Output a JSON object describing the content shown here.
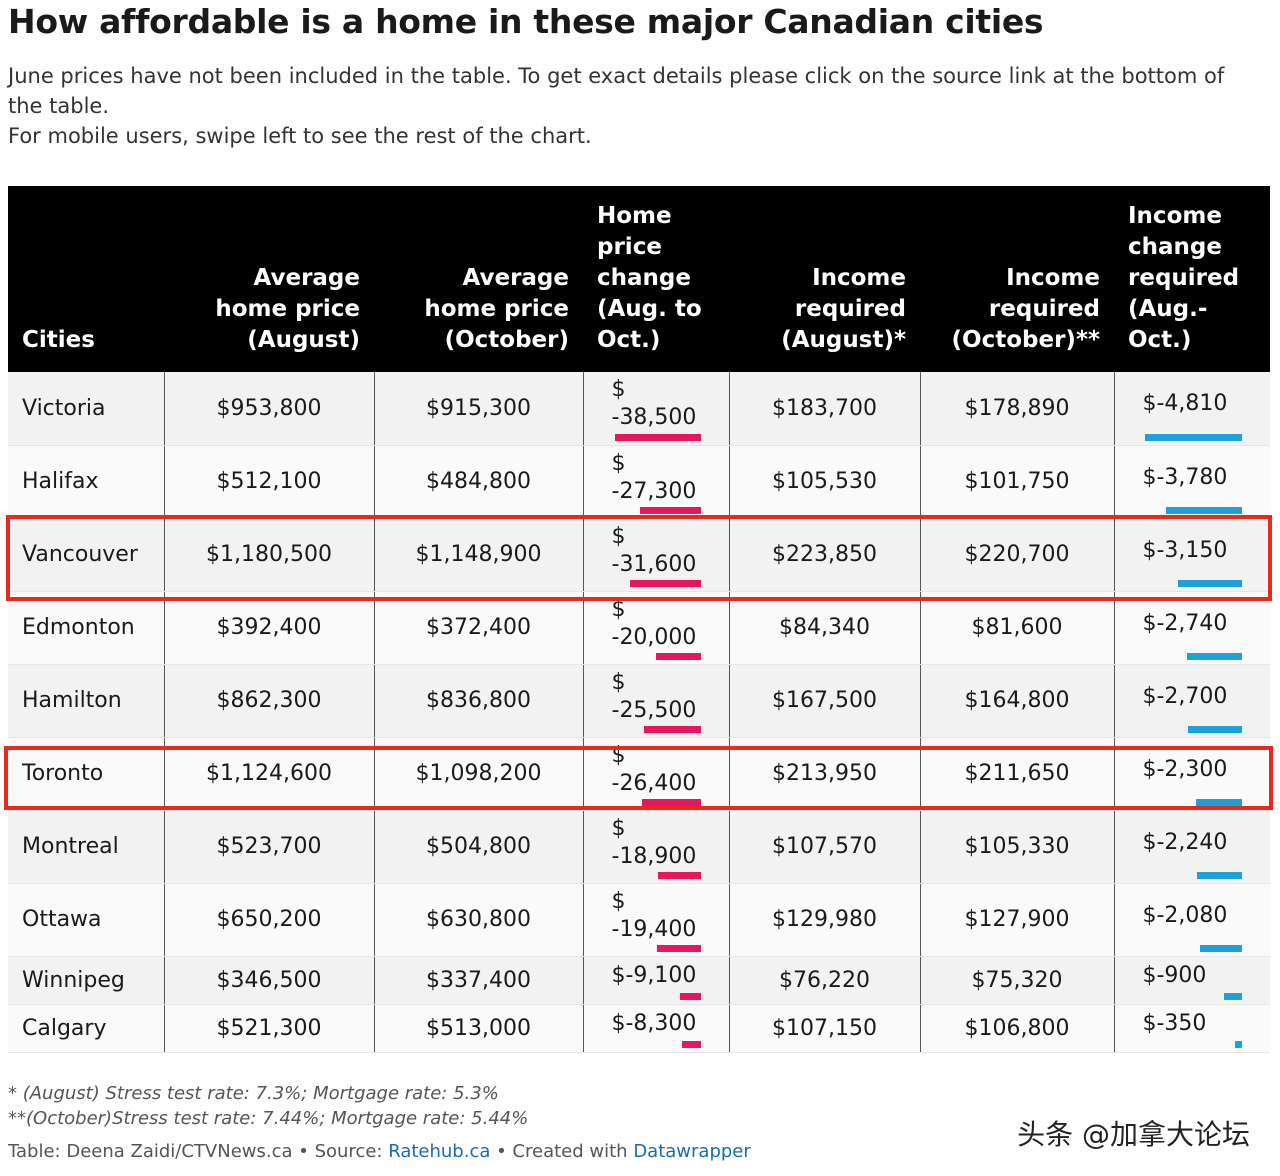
{
  "title": "How affordable is a home in these major Canadian cities",
  "intro": [
    "June prices have not been included in the table. To get exact details please click on the source link at the bottom of the table.",
    "For mobile users, swipe left to see the rest of the chart."
  ],
  "chart_data": {
    "type": "table",
    "columns": [
      "Cities",
      "Average home price (August)",
      "Average home price (October)",
      "Home price change (Aug. to Oct.)",
      "Income required (August)*",
      "Income required (October)**",
      "Income change required (Aug.- Oct.)"
    ],
    "rows": [
      {
        "city": "Victoria",
        "price_aug": "$953,800",
        "price_oct": "$915,300",
        "price_change": "$ -38,500",
        "price_change_value": -38500,
        "income_aug": "$183,700",
        "income_oct": "$178,890",
        "income_change": "$-4,810",
        "income_change_value": -4810
      },
      {
        "city": "Halifax",
        "price_aug": "$512,100",
        "price_oct": "$484,800",
        "price_change": "$ -27,300",
        "price_change_value": -27300,
        "income_aug": "$105,530",
        "income_oct": "$101,750",
        "income_change": "$-3,780",
        "income_change_value": -3780
      },
      {
        "city": "Vancouver",
        "price_aug": "$1,180,500",
        "price_oct": "$1,148,900",
        "price_change": "$ -31,600",
        "price_change_value": -31600,
        "income_aug": "$223,850",
        "income_oct": "$220,700",
        "income_change": "$-3,150",
        "income_change_value": -3150,
        "highlighted": true
      },
      {
        "city": "Edmonton",
        "price_aug": "$392,400",
        "price_oct": "$372,400",
        "price_change": "$ -20,000",
        "price_change_value": -20000,
        "income_aug": "$84,340",
        "income_oct": "$81,600",
        "income_change": "$-2,740",
        "income_change_value": -2740
      },
      {
        "city": "Hamilton",
        "price_aug": "$862,300",
        "price_oct": "$836,800",
        "price_change": "$ -25,500",
        "price_change_value": -25500,
        "income_aug": "$167,500",
        "income_oct": "$164,800",
        "income_change": "$-2,700",
        "income_change_value": -2700
      },
      {
        "city": "Toronto",
        "price_aug": "$1,124,600",
        "price_oct": "$1,098,200",
        "price_change": "$ -26,400",
        "price_change_value": -26400,
        "income_aug": "$213,950",
        "income_oct": "$211,650",
        "income_change": "$-2,300",
        "income_change_value": -2300,
        "highlighted": true
      },
      {
        "city": "Montreal",
        "price_aug": "$523,700",
        "price_oct": "$504,800",
        "price_change": "$ -18,900",
        "price_change_value": -18900,
        "income_aug": "$107,570",
        "income_oct": "$105,330",
        "income_change": "$-2,240",
        "income_change_value": -2240
      },
      {
        "city": "Ottawa",
        "price_aug": "$650,200",
        "price_oct": "$630,800",
        "price_change": "$ -19,400",
        "price_change_value": -19400,
        "income_aug": "$129,980",
        "income_oct": "$127,900",
        "income_change": "$-2,080",
        "income_change_value": -2080
      },
      {
        "city": "Winnipeg",
        "price_aug": "$346,500",
        "price_oct": "$337,400",
        "price_change": "$-9,100",
        "price_change_value": -9100,
        "income_aug": "$76,220",
        "income_oct": "$75,320",
        "income_change": "$-900",
        "income_change_value": -900
      },
      {
        "city": "Calgary",
        "price_aug": "$521,300",
        "price_oct": "$513,000",
        "price_change": "$-8,300",
        "price_change_value": -8300,
        "income_aug": "$107,150",
        "income_oct": "$106,800",
        "income_change": "$-350",
        "income_change_value": -350
      }
    ],
    "price_bar_color": "#e8175d",
    "income_bar_color": "#1ea0d8",
    "highlight_color": "#e62b1e"
  },
  "notes": [
    "* (August) Stress test rate: 7.3%; Mortgage rate: 5.3%",
    "**(October)Stress test rate: 7.44%; Mortgage rate: 5.44%"
  ],
  "credit": {
    "prefix": "Table: Deena Zaidi/CTVNews.ca • Source: ",
    "source_link": "Ratehub.ca",
    "middle": " • Created with ",
    "tool_link": "Datawrapper"
  },
  "watermark": "头条 @加拿大论坛"
}
